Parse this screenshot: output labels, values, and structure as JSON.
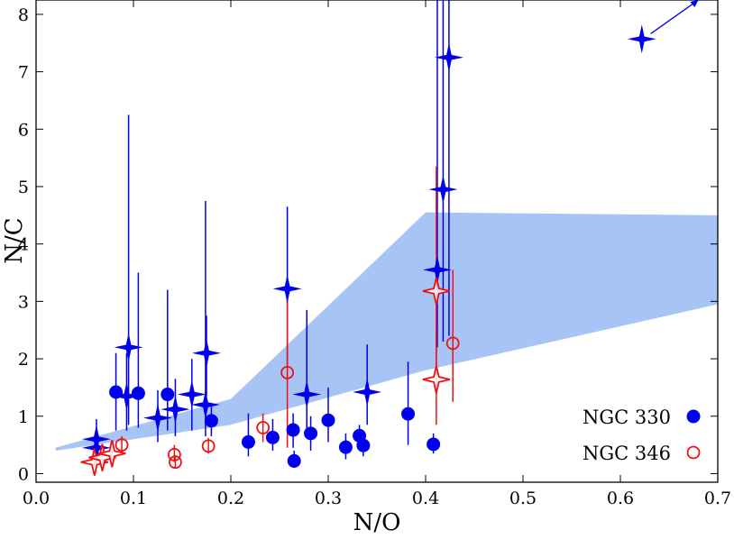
{
  "chart_data": {
    "type": "scatter",
    "xlabel": "N/O",
    "ylabel": "N/C",
    "xlim": [
      0.0,
      0.7
    ],
    "ylim": [
      -0.15,
      8.25
    ],
    "xticks": [
      "0.0",
      "0.1",
      "0.2",
      "0.3",
      "0.4",
      "0.5",
      "0.6",
      "0.7"
    ],
    "yticks": [
      "0",
      "1",
      "2",
      "3",
      "4",
      "5",
      "6",
      "7",
      "8"
    ],
    "grid": false,
    "legend_position": "bottom-right",
    "legend": [
      {
        "label": "NGC 330",
        "marker": "filled-circle",
        "color": "#0000ee"
      },
      {
        "label": "NGC 346",
        "marker": "open-circle",
        "color": "#ee1111"
      }
    ],
    "band": {
      "color": "#a8c4f5",
      "upper": [
        [
          0.02,
          0.45
        ],
        [
          0.2,
          1.3
        ],
        [
          0.4,
          4.55
        ],
        [
          0.7,
          4.5
        ]
      ],
      "lower": [
        [
          0.7,
          2.95
        ],
        [
          0.4,
          1.8
        ],
        [
          0.2,
          0.85
        ],
        [
          0.02,
          0.4
        ]
      ]
    },
    "series": [
      {
        "name": "NGC 330",
        "color": "#0000ee",
        "circles": [
          {
            "x": 0.082,
            "y": 1.42,
            "ylo": 0.75,
            "yhi": 2.1
          },
          {
            "x": 0.105,
            "y": 1.4,
            "ylo": 0.8,
            "yhi": 3.5
          },
          {
            "x": 0.135,
            "y": 1.38,
            "ylo": 0.75,
            "yhi": 3.2
          },
          {
            "x": 0.18,
            "y": 0.92,
            "ylo": 0.65,
            "yhi": 1.2
          },
          {
            "x": 0.218,
            "y": 0.55,
            "ylo": 0.3,
            "yhi": 1.05
          },
          {
            "x": 0.243,
            "y": 0.63,
            "ylo": 0.4,
            "yhi": 0.95
          },
          {
            "x": 0.264,
            "y": 0.76,
            "ylo": 0.45,
            "yhi": 1.05
          },
          {
            "x": 0.282,
            "y": 0.7,
            "ylo": 0.4,
            "yhi": 1.0
          },
          {
            "x": 0.265,
            "y": 0.22,
            "ylo": 0.1,
            "yhi": 0.4
          },
          {
            "x": 0.3,
            "y": 0.93,
            "ylo": 0.55,
            "yhi": 1.5
          },
          {
            "x": 0.318,
            "y": 0.46,
            "ylo": 0.25,
            "yhi": 0.7
          },
          {
            "x": 0.332,
            "y": 0.66,
            "ylo": 0.45,
            "yhi": 0.85
          },
          {
            "x": 0.336,
            "y": 0.49,
            "ylo": 0.3,
            "yhi": 0.7
          },
          {
            "x": 0.382,
            "y": 1.04,
            "ylo": 0.5,
            "yhi": 1.95
          },
          {
            "x": 0.408,
            "y": 0.51,
            "ylo": 0.35,
            "yhi": 0.7
          }
        ],
        "stars": [
          {
            "x": 0.062,
            "y": 0.6,
            "ylo": 0.25,
            "yhi": 0.95
          },
          {
            "x": 0.062,
            "y": 0.45,
            "ylo": 0.15,
            "yhi": 0.75
          },
          {
            "x": 0.095,
            "y": 2.2,
            "ylo": 0.85,
            "yhi": 6.25
          },
          {
            "x": 0.093,
            "y": 1.35,
            "ylo": 0.75,
            "yhi": 2.1
          },
          {
            "x": 0.125,
            "y": 0.97,
            "ylo": 0.55,
            "yhi": 1.45
          },
          {
            "x": 0.143,
            "y": 1.12,
            "ylo": 0.65,
            "yhi": 1.65
          },
          {
            "x": 0.16,
            "y": 1.38,
            "ylo": 0.75,
            "yhi": 2.0
          },
          {
            "x": 0.174,
            "y": 1.2,
            "ylo": 0.65,
            "yhi": 4.75
          },
          {
            "x": 0.175,
            "y": 2.1,
            "ylo": 1.35,
            "yhi": 2.75
          },
          {
            "x": 0.258,
            "y": 3.22,
            "ylo": 1.9,
            "yhi": 4.65
          },
          {
            "x": 0.278,
            "y": 1.38,
            "ylo": 0.65,
            "yhi": 2.85
          },
          {
            "x": 0.34,
            "y": 1.42,
            "ylo": 0.85,
            "yhi": 2.25
          },
          {
            "x": 0.412,
            "y": 3.55,
            "ylo": 2.2,
            "yhi": 8.25
          },
          {
            "x": 0.418,
            "y": 4.95,
            "ylo": 2.3,
            "yhi": 8.25
          },
          {
            "x": 0.424,
            "y": 7.25,
            "ylo": 2.4,
            "yhi": 8.25
          },
          {
            "x": 0.622,
            "y": 7.57,
            "arrow_to": [
              0.68,
              8.25
            ]
          }
        ]
      },
      {
        "name": "NGC 346",
        "color": "#ee1111",
        "circles": [
          {
            "x": 0.088,
            "y": 0.5,
            "ylo": 0.35,
            "yhi": 0.65
          },
          {
            "x": 0.142,
            "y": 0.33,
            "ylo": 0.2,
            "yhi": 0.5
          },
          {
            "x": 0.143,
            "y": 0.2,
            "ylo": 0.1,
            "yhi": 0.3
          },
          {
            "x": 0.177,
            "y": 0.48,
            "ylo": 0.35,
            "yhi": 0.62
          },
          {
            "x": 0.233,
            "y": 0.8,
            "ylo": 0.55,
            "yhi": 1.05
          },
          {
            "x": 0.258,
            "y": 1.76,
            "ylo": 0.45,
            "yhi": 3.35
          },
          {
            "x": 0.428,
            "y": 2.27,
            "ylo": 1.25,
            "yhi": 3.55
          }
        ],
        "stars": [
          {
            "x": 0.06,
            "y": 0.2,
            "ylo": 0.1,
            "yhi": 0.35
          },
          {
            "x": 0.068,
            "y": 0.28,
            "ylo": 0.15,
            "yhi": 0.45
          },
          {
            "x": 0.078,
            "y": 0.35,
            "ylo": 0.2,
            "yhi": 0.55
          },
          {
            "x": 0.411,
            "y": 3.18,
            "ylo": 1.45,
            "yhi": 5.35
          },
          {
            "x": 0.411,
            "y": 1.64,
            "ylo": 0.85,
            "yhi": 2.5
          }
        ]
      }
    ]
  }
}
